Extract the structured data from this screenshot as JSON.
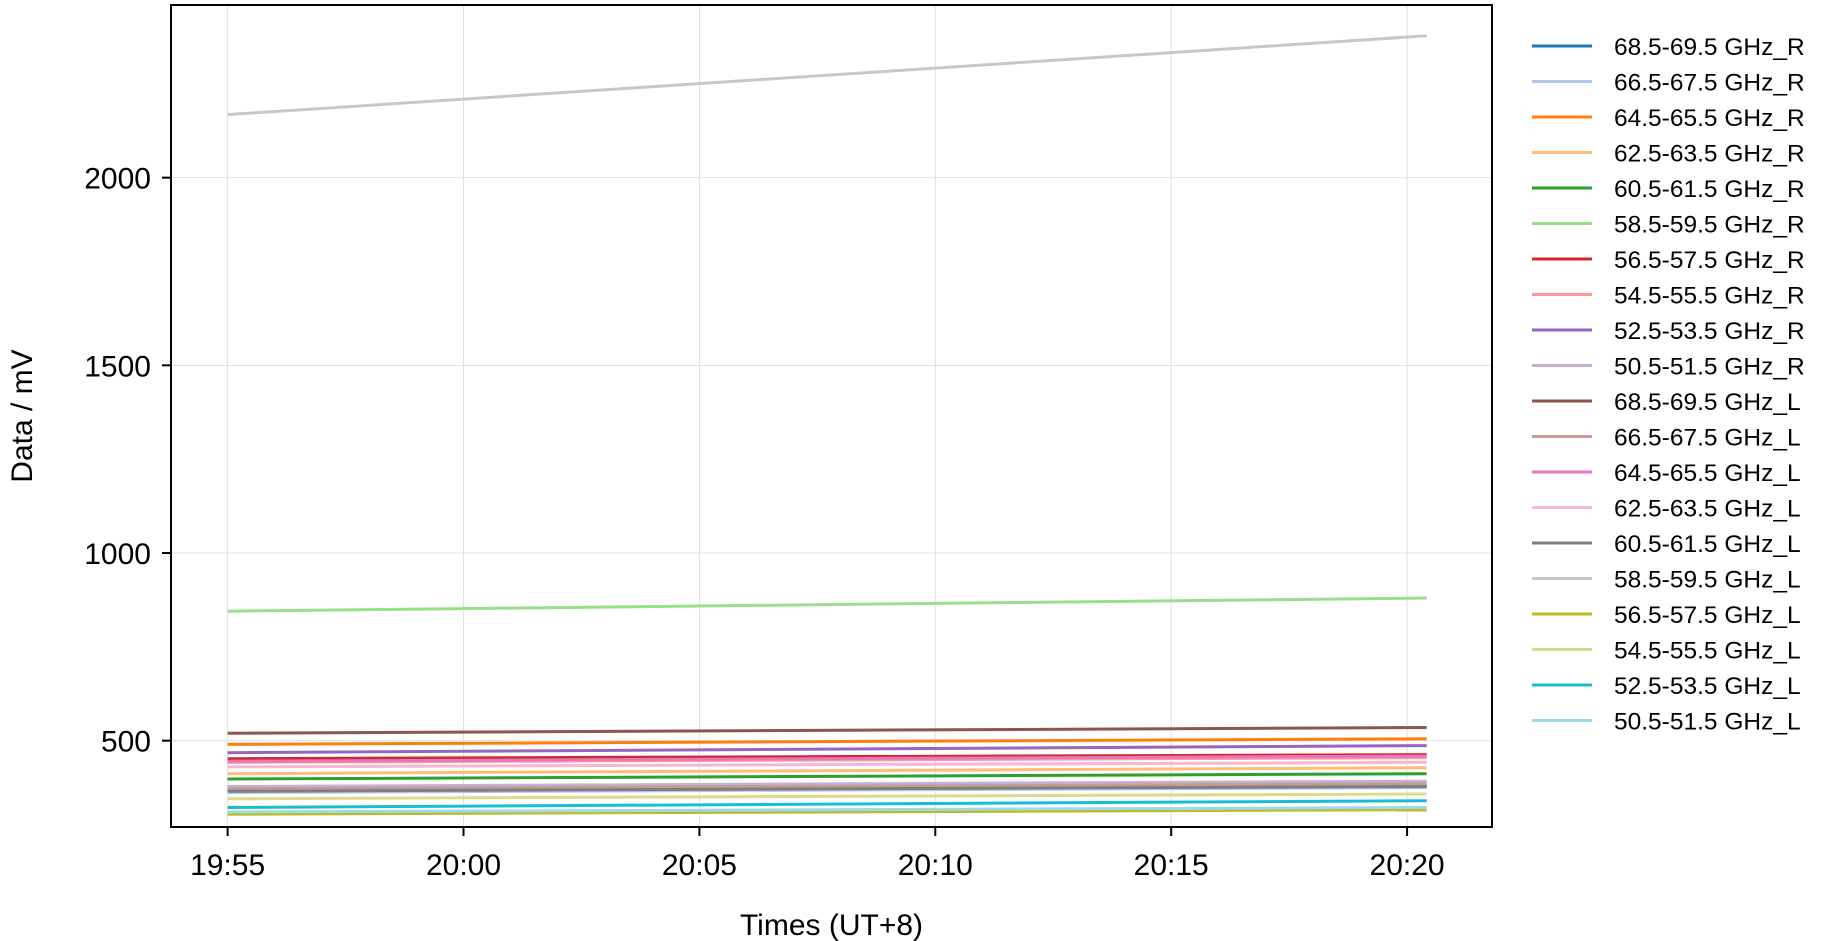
{
  "chart_data": {
    "type": "line",
    "title": "",
    "xlabel": "Times (UT+8)",
    "ylabel": "Data / mV",
    "xlim": [
      "19:53:48",
      "20:21:48"
    ],
    "ylim": [
      270,
      2460
    ],
    "x_ticks": [
      "19:55",
      "20:00",
      "20:05",
      "20:10",
      "20:15",
      "20:20"
    ],
    "y_ticks": [
      500,
      1000,
      1500,
      2000
    ],
    "grid": true,
    "legend_position": "outside-right",
    "x": [
      "19:55",
      "20:20:25"
    ],
    "series": [
      {
        "name": "68.5-69.5 GHz_R",
        "color": "#1f77b4",
        "values": [
          370,
          383
        ]
      },
      {
        "name": "66.5-67.5 GHz_R",
        "color": "#aec7e8",
        "values": [
          362,
          375
        ]
      },
      {
        "name": "64.5-65.5 GHz_R",
        "color": "#ff7f0e",
        "values": [
          490,
          505
        ]
      },
      {
        "name": "62.5-63.5 GHz_R",
        "color": "#ffbb78",
        "values": [
          412,
          428
        ]
      },
      {
        "name": "60.5-61.5 GHz_R",
        "color": "#2ca02c",
        "values": [
          398,
          412
        ]
      },
      {
        "name": "58.5-59.5 GHz_R",
        "color": "#98df8a",
        "values": [
          845,
          880
        ]
      },
      {
        "name": "56.5-57.5 GHz_R",
        "color": "#d62728",
        "values": [
          452,
          463
        ]
      },
      {
        "name": "54.5-55.5 GHz_R",
        "color": "#ff9896",
        "values": [
          442,
          455
        ]
      },
      {
        "name": "52.5-53.5 GHz_R",
        "color": "#9467bd",
        "values": [
          468,
          487
        ]
      },
      {
        "name": "50.5-51.5 GHz_R",
        "color": "#c5b0d5",
        "values": [
          378,
          392
        ]
      },
      {
        "name": "68.5-69.5 GHz_L",
        "color": "#8c564b",
        "values": [
          520,
          535
        ]
      },
      {
        "name": "66.5-67.5 GHz_L",
        "color": "#c49c94",
        "values": [
          372,
          385
        ]
      },
      {
        "name": "64.5-65.5 GHz_L",
        "color": "#e377c2",
        "values": [
          445,
          459
        ]
      },
      {
        "name": "62.5-63.5 GHz_L",
        "color": "#f7b6d2",
        "values": [
          430,
          442
        ]
      },
      {
        "name": "60.5-61.5 GHz_L",
        "color": "#7f7f7f",
        "values": [
          365,
          378
        ]
      },
      {
        "name": "58.5-59.5 GHz_L",
        "color": "#c7c7c7",
        "values": [
          2168,
          2378
        ]
      },
      {
        "name": "56.5-57.5 GHz_L",
        "color": "#bcbd22",
        "values": [
          304,
          316
        ]
      },
      {
        "name": "54.5-55.5 GHz_L",
        "color": "#dbdb8d",
        "values": [
          345,
          358
        ]
      },
      {
        "name": "52.5-53.5 GHz_L",
        "color": "#17becf",
        "values": [
          322,
          340
        ]
      },
      {
        "name": "50.5-51.5 GHz_L",
        "color": "#9edae5",
        "values": [
          310,
          322
        ]
      }
    ]
  }
}
